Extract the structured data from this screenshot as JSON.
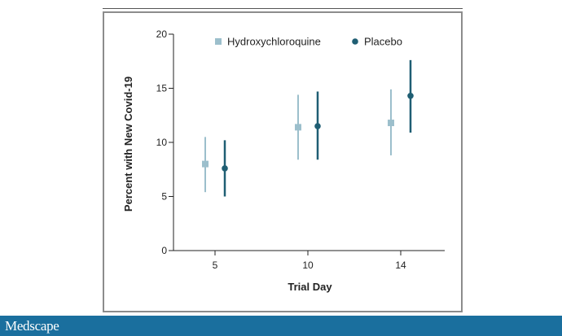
{
  "chart_data": {
    "type": "scatter",
    "xlabel": "Trial Day",
    "ylabel": "Percent with New Covid-19",
    "categories": [
      "5",
      "10",
      "14"
    ],
    "ylim": [
      0,
      20
    ],
    "yticks": [
      0,
      5,
      10,
      15,
      20
    ],
    "grid": false,
    "legend_position": "top-right",
    "series": [
      {
        "name": "Hydroxychloroquine",
        "marker": "square",
        "color": "#9cbfcc",
        "values": [
          8.0,
          11.4,
          11.8
        ],
        "lower": [
          5.4,
          8.4,
          8.8
        ],
        "upper": [
          10.5,
          14.4,
          14.9
        ]
      },
      {
        "name": "Placebo",
        "marker": "circle",
        "color": "#1f5e73",
        "values": [
          7.6,
          11.5,
          14.3
        ],
        "lower": [
          5.0,
          8.4,
          10.9
        ],
        "upper": [
          10.2,
          14.7,
          17.6
        ]
      }
    ]
  },
  "footer": {
    "brand": "Medscape",
    "color": "#1a6f9e"
  }
}
